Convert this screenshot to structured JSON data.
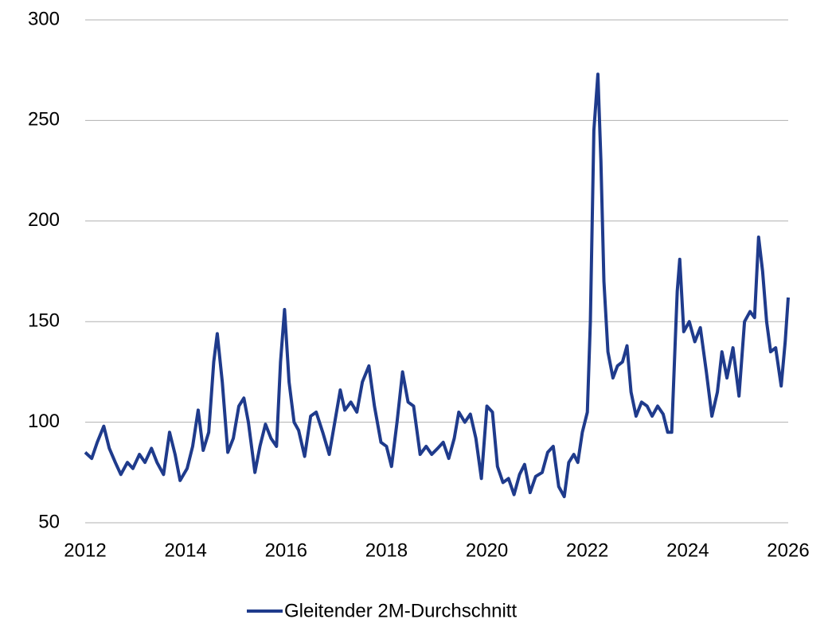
{
  "chart_data": {
    "type": "line",
    "x": [
      2012.0,
      2012.13,
      2012.24,
      2012.37,
      2012.48,
      2012.6,
      2012.71,
      2012.84,
      2012.95,
      2013.08,
      2013.19,
      2013.32,
      2013.43,
      2013.56,
      2013.68,
      2013.79,
      2013.89,
      2014.03,
      2014.14,
      2014.25,
      2014.35,
      2014.46,
      2014.56,
      2014.63,
      2014.73,
      2014.84,
      2014.95,
      2015.06,
      2015.16,
      2015.25,
      2015.38,
      2015.48,
      2015.59,
      2015.7,
      2015.81,
      2015.89,
      2015.97,
      2016.06,
      2016.16,
      2016.25,
      2016.37,
      2016.49,
      2016.6,
      2016.73,
      2016.86,
      2016.97,
      2017.08,
      2017.17,
      2017.29,
      2017.41,
      2017.52,
      2017.65,
      2017.76,
      2017.89,
      2018.0,
      2018.1,
      2018.21,
      2018.32,
      2018.43,
      2018.54,
      2018.67,
      2018.79,
      2018.9,
      2019.02,
      2019.13,
      2019.24,
      2019.35,
      2019.44,
      2019.56,
      2019.67,
      2019.78,
      2019.89,
      2020.0,
      2020.11,
      2020.21,
      2020.32,
      2020.43,
      2020.54,
      2020.65,
      2020.75,
      2020.86,
      2020.97,
      2021.1,
      2021.21,
      2021.32,
      2021.43,
      2021.54,
      2021.63,
      2021.73,
      2021.81,
      2021.9,
      2022.0,
      2022.06,
      2022.13,
      2022.21,
      2022.27,
      2022.33,
      2022.41,
      2022.51,
      2022.6,
      2022.7,
      2022.79,
      2022.87,
      2022.97,
      2023.08,
      2023.19,
      2023.29,
      2023.4,
      2023.51,
      2023.6,
      2023.68,
      2023.75,
      2023.79,
      2023.84,
      2023.92,
      2024.03,
      2024.14,
      2024.25,
      2024.37,
      2024.48,
      2024.59,
      2024.68,
      2024.78,
      2024.9,
      2025.02,
      2025.13,
      2025.24,
      2025.33,
      2025.41,
      2025.49,
      2025.57,
      2025.65,
      2025.75,
      2025.86,
      2025.94,
      2026.0
    ],
    "series": [
      {
        "name": "Gleitender 2M-Durchschnitt",
        "color": "#1f3b8c",
        "values": [
          85,
          82,
          90,
          98,
          87,
          80,
          74,
          80,
          77,
          84,
          80,
          87,
          80,
          74,
          95,
          84,
          71,
          77,
          88,
          106,
          86,
          95,
          130,
          144,
          120,
          85,
          92,
          108,
          112,
          100,
          75,
          88,
          99,
          92,
          88,
          130,
          156,
          120,
          100,
          96,
          83,
          103,
          105,
          95,
          84,
          100,
          116,
          106,
          110,
          105,
          120,
          128,
          108,
          90,
          88,
          78,
          100,
          125,
          110,
          108,
          84,
          88,
          84,
          87,
          90,
          82,
          92,
          105,
          100,
          104,
          92,
          72,
          108,
          105,
          78,
          70,
          72,
          64,
          74,
          79,
          65,
          73,
          75,
          85,
          88,
          68,
          63,
          80,
          84,
          80,
          95,
          105,
          150,
          245,
          273,
          230,
          170,
          135,
          122,
          128,
          130,
          138,
          115,
          103,
          110,
          108,
          103,
          108,
          104,
          95,
          95,
          140,
          165,
          181,
          145,
          150,
          140,
          147,
          125,
          103,
          115,
          135,
          122,
          137,
          113,
          150,
          155,
          152,
          192,
          175,
          150,
          135,
          137,
          118,
          140,
          162
        ]
      }
    ],
    "xlim": [
      2012,
      2026
    ],
    "xticks": [
      2012,
      2014,
      2016,
      2018,
      2020,
      2022,
      2024,
      2026
    ],
    "ylim": [
      50,
      300
    ],
    "yticks": [
      50,
      100,
      150,
      200,
      250,
      300
    ],
    "grid": true,
    "legend": "bottom"
  }
}
